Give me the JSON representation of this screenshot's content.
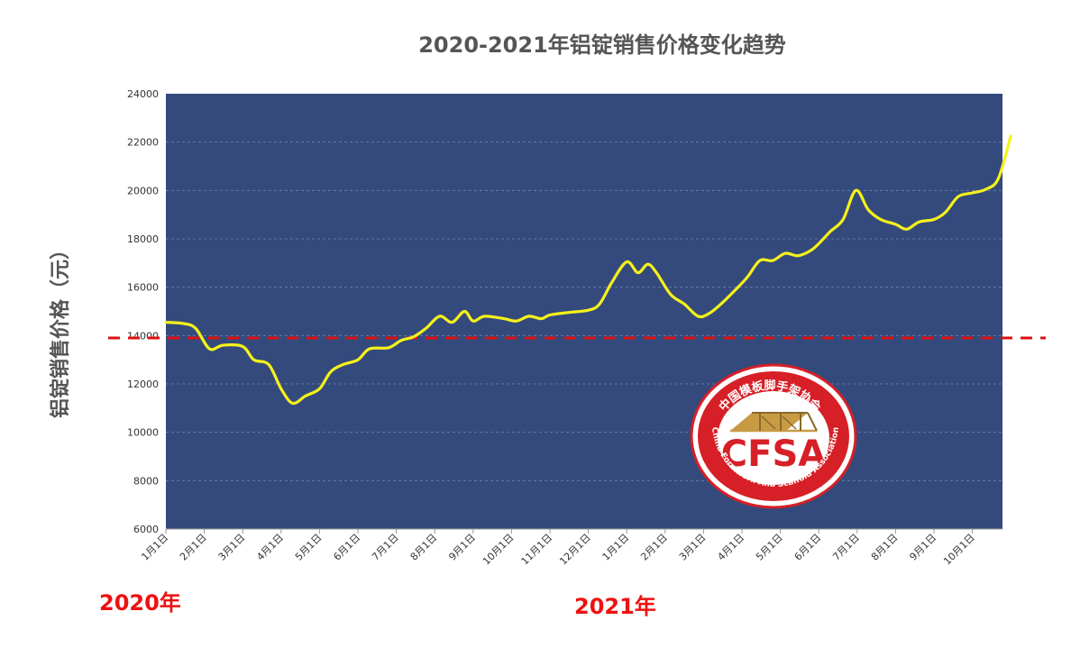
{
  "chart_data": {
    "type": "line",
    "title": "2020-2021年铝锭销售价格变化趋势",
    "xlabel": "",
    "ylabel": "铝锭销售价格（元）",
    "ylim": [
      6000,
      24000
    ],
    "yticks": [
      "6000",
      "8000",
      "10000",
      "12000",
      "14000",
      "16000",
      "18000",
      "20000",
      "22000",
      "24000"
    ],
    "grid": true,
    "month_labels": [
      "1月1日",
      "2月1日",
      "3月1日",
      "4月1日",
      "5月1日",
      "6月1日",
      "7月1日",
      "8月1日",
      "9月1日",
      "10月1日",
      "11月1日",
      "12月1日",
      "1月1日",
      "2月1日",
      "3月1日",
      "4月1日",
      "5月1日",
      "6月1日",
      "7月1日",
      "8月1日",
      "9月1日",
      "10月1日"
    ],
    "year_labels": [
      "2020年",
      "2021年"
    ],
    "reference_line": {
      "value": 13900,
      "color": "#dd1111"
    },
    "series": [
      {
        "color": "#f5f21a",
        "points": [
          [
            "2020-01-01",
            14550
          ],
          [
            "2020-01-15",
            14500
          ],
          [
            "2020-01-25",
            14300
          ],
          [
            "2020-02-05",
            13450
          ],
          [
            "2020-02-15",
            13600
          ],
          [
            "2020-03-01",
            13550
          ],
          [
            "2020-03-10",
            13000
          ],
          [
            "2020-03-22",
            12800
          ],
          [
            "2020-04-01",
            11800
          ],
          [
            "2020-04-10",
            11200
          ],
          [
            "2020-04-20",
            11500
          ],
          [
            "2020-05-01",
            11800
          ],
          [
            "2020-05-10",
            12500
          ],
          [
            "2020-05-20",
            12800
          ],
          [
            "2020-06-01",
            13000
          ],
          [
            "2020-06-10",
            13450
          ],
          [
            "2020-06-25",
            13500
          ],
          [
            "2020-07-05",
            13800
          ],
          [
            "2020-07-15",
            13950
          ],
          [
            "2020-07-25",
            14300
          ],
          [
            "2020-08-05",
            14800
          ],
          [
            "2020-08-15",
            14550
          ],
          [
            "2020-08-25",
            15000
          ],
          [
            "2020-09-01",
            14600
          ],
          [
            "2020-09-10",
            14800
          ],
          [
            "2020-09-25",
            14700
          ],
          [
            "2020-10-05",
            14600
          ],
          [
            "2020-10-15",
            14800
          ],
          [
            "2020-10-25",
            14700
          ],
          [
            "2020-11-01",
            14850
          ],
          [
            "2020-11-15",
            14950
          ],
          [
            "2020-12-01",
            15050
          ],
          [
            "2020-12-10",
            15300
          ],
          [
            "2020-12-20",
            16200
          ],
          [
            "2021-01-01",
            17050
          ],
          [
            "2021-01-10",
            16600
          ],
          [
            "2021-01-18",
            16950
          ],
          [
            "2021-01-25",
            16600
          ],
          [
            "2021-02-05",
            15700
          ],
          [
            "2021-02-15",
            15300
          ],
          [
            "2021-02-25",
            14800
          ],
          [
            "2021-03-05",
            14900
          ],
          [
            "2021-03-15",
            15300
          ],
          [
            "2021-03-25",
            15800
          ],
          [
            "2021-04-05",
            16400
          ],
          [
            "2021-04-15",
            17100
          ],
          [
            "2021-04-25",
            17100
          ],
          [
            "2021-05-05",
            17400
          ],
          [
            "2021-05-15",
            17300
          ],
          [
            "2021-05-25",
            17500
          ],
          [
            "2021-06-01",
            17800
          ],
          [
            "2021-06-10",
            18300
          ],
          [
            "2021-06-20",
            18800
          ],
          [
            "2021-06-30",
            20000
          ],
          [
            "2021-07-10",
            19200
          ],
          [
            "2021-07-20",
            18800
          ],
          [
            "2021-08-01",
            18600
          ],
          [
            "2021-08-10",
            18400
          ],
          [
            "2021-08-20",
            18700
          ],
          [
            "2021-09-01",
            18800
          ],
          [
            "2021-09-10",
            19100
          ],
          [
            "2021-09-20",
            19750
          ],
          [
            "2021-10-01",
            19900
          ],
          [
            "2021-10-12",
            20050
          ],
          [
            "2021-10-22",
            20500
          ],
          [
            "2021-11-01",
            22250
          ]
        ]
      }
    ]
  },
  "logo": {
    "name": "CFSA",
    "ring_text_cn": "中国模板脚手架协会",
    "ring_text_en": "China Formwork And Scaffold Association"
  },
  "colors": {
    "plot_bg": "#344a7c",
    "line": "#f5f21a",
    "reference": "#dd1111",
    "logo_red": "#d61f26",
    "logo_gold": "#c99a44"
  }
}
